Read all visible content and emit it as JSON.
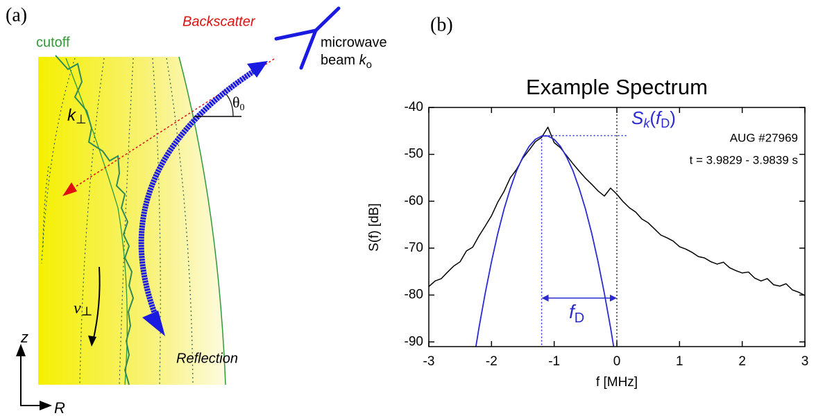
{
  "diagram": {
    "panel_a": "(a)",
    "panel_b": "(b)",
    "cutoff": "cutoff",
    "backscatter": "Backscatter",
    "microwave": "microwave",
    "beam": "beam ",
    "k_symbol": "k",
    "k_sub": "o",
    "k_perp": [
      "k",
      "⊥"
    ],
    "theta": [
      "θ",
      "0"
    ],
    "v_perp": [
      "v",
      "⊥"
    ],
    "reflection": "Reflection",
    "axis_z": "z",
    "axis_r": "R"
  },
  "chart_data": {
    "type": "line",
    "title": "Example Spectrum",
    "x_label": "f [MHz]",
    "y_label": "S(f) [dB]",
    "xlim": [
      -3,
      3
    ],
    "ylim": [
      -91,
      -40
    ],
    "xticks": [
      -3,
      -2,
      -1,
      0,
      1,
      2,
      3
    ],
    "yticks": [
      -90,
      -80,
      -70,
      -60,
      -50,
      -40
    ],
    "x": [
      -3.0,
      -2.9,
      -2.8,
      -2.7,
      -2.6,
      -2.5,
      -2.4,
      -2.3,
      -2.2,
      -2.1,
      -2.0,
      -1.9,
      -1.8,
      -1.7,
      -1.6,
      -1.5,
      -1.4,
      -1.3,
      -1.2,
      -1.1,
      -1.0,
      -0.9,
      -0.8,
      -0.7,
      -0.6,
      -0.5,
      -0.4,
      -0.3,
      -0.2,
      -0.1,
      0.0,
      0.1,
      0.2,
      0.3,
      0.4,
      0.5,
      0.6,
      0.7,
      0.8,
      0.9,
      1.0,
      1.1,
      1.2,
      1.3,
      1.4,
      1.5,
      1.6,
      1.7,
      1.8,
      1.9,
      2.0,
      2.1,
      2.2,
      2.3,
      2.4,
      2.5,
      2.6,
      2.7,
      2.8,
      2.9,
      3.0
    ],
    "series": [
      {
        "color": "#000000",
        "values": [
          -78.2,
          -77.0,
          -76.5,
          -75.1,
          -73.8,
          -72.9,
          -70.6,
          -69.8,
          -67.4,
          -65.3,
          -63.1,
          -60.2,
          -57.9,
          -55.0,
          -53.2,
          -50.8,
          -49.1,
          -47.3,
          -46.4,
          -44.2,
          -47.5,
          -48.6,
          -50.3,
          -52.0,
          -53.6,
          -55.1,
          -56.4,
          -57.8,
          -58.9,
          -57.2,
          -58.5,
          -60.1,
          -61.4,
          -62.3,
          -63.8,
          -64.6,
          -65.9,
          -67.2,
          -67.8,
          -68.5,
          -69.7,
          -70.2,
          -70.9,
          -71.8,
          -72.1,
          -72.9,
          -73.4,
          -73.0,
          -74.2,
          -74.8,
          -75.3,
          -75.1,
          -76.4,
          -77.0,
          -76.5,
          -77.8,
          -78.1,
          -77.6,
          -78.9,
          -79.4,
          -80.1
        ]
      },
      {
        "color": "#2a2ad0",
        "values": [
          null,
          null,
          null,
          null,
          null,
          null,
          null,
          -95.2,
          -87.0,
          -79.6,
          -72.9,
          -66.9,
          -61.7,
          -57.3,
          -53.5,
          -50.6,
          -48.3,
          -46.8,
          -46.1,
          -46.1,
          -46.8,
          -48.3,
          -50.6,
          -53.5,
          -57.3,
          -61.7,
          -66.9,
          -72.9,
          -79.6,
          -87.0,
          -95.2,
          null,
          null,
          null,
          null,
          null,
          null,
          null,
          null,
          null,
          null,
          null,
          null,
          null,
          null,
          null,
          null,
          null,
          null,
          null,
          null,
          null,
          null,
          null,
          null,
          null,
          null,
          null,
          null,
          null,
          null
        ]
      }
    ],
    "doppler_shift": -1.2,
    "peak_level": -46,
    "fit_label": [
      "S",
      "k",
      "(",
      "f",
      "D",
      ")"
    ],
    "fd_label": [
      "f",
      "D"
    ],
    "annotations": [
      "AUG #27969",
      "t = 3.9829 - 3.9839 s"
    ]
  }
}
